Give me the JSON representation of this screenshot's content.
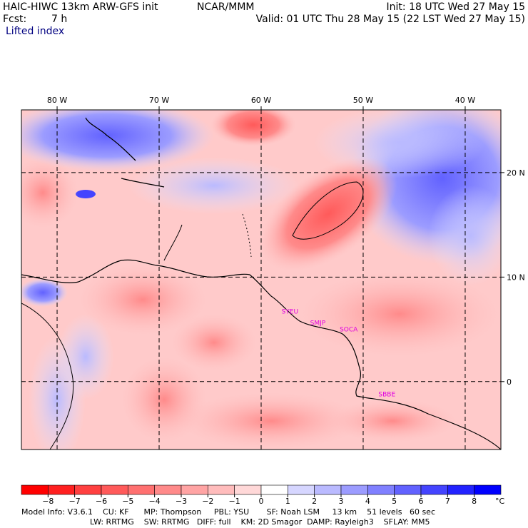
{
  "header": {
    "model_line": "HAIC-HIWC 13km ARW-GFS init",
    "org": "NCAR/MMM",
    "init": "Init: 18 UTC Wed 27 May 15",
    "fcst_label": "Fcst:",
    "fcst_value": "7 h",
    "valid": "Valid: 01 UTC Thu 28 May 15 (22 LST Wed 27 May 15)",
    "field": "Lifted index"
  },
  "map": {
    "lon_labels": [
      "80 W",
      "70 W",
      "60 W",
      "50 W",
      "40 W"
    ],
    "lat_labels": [
      "20 N",
      "10 N",
      "0"
    ],
    "lon_values": [
      -80,
      -70,
      -60,
      -50,
      -40
    ],
    "lat_values": [
      20,
      10,
      0
    ],
    "lon_range": [
      -83.5,
      -36.5
    ],
    "lat_range": [
      -6.5,
      26
    ],
    "station_labels": [
      "SYEU",
      "SMJP",
      "SOCA",
      "SBBE"
    ],
    "colors": {
      "border": "#000000",
      "grid": "#000000",
      "station": "#e000e0",
      "coast": "#000000"
    }
  },
  "colorbar": {
    "ticks": [
      "−8",
      "−7",
      "−6",
      "−5",
      "−4",
      "−3",
      "−2",
      "−1",
      "0",
      "1",
      "2",
      "3",
      "4",
      "5",
      "6",
      "7",
      "8"
    ],
    "unit": "°C",
    "colors": [
      "#ff0000",
      "#ff2020",
      "#ff4040",
      "#ff5a5a",
      "#ff7070",
      "#ff8a8a",
      "#ffa4a4",
      "#ffbcbc",
      "#ffd8d8",
      "#ffffff",
      "#d6d6ff",
      "#babaff",
      "#9c9cff",
      "#8080ff",
      "#6262ff",
      "#4444ff",
      "#2222ff",
      "#0000ff"
    ]
  },
  "footer": {
    "line1": "Model Info: V3.6.1    CU: KF      MP: Thompson     PBL: YSU       SF: Noah LSM     13 km    51 levels   60 sec",
    "line2": "LW: RRTMG    SW: RRTMG   DIFF: full    KM: 2D Smagor  DAMP: Rayleigh3    SFLAY: MM5"
  }
}
